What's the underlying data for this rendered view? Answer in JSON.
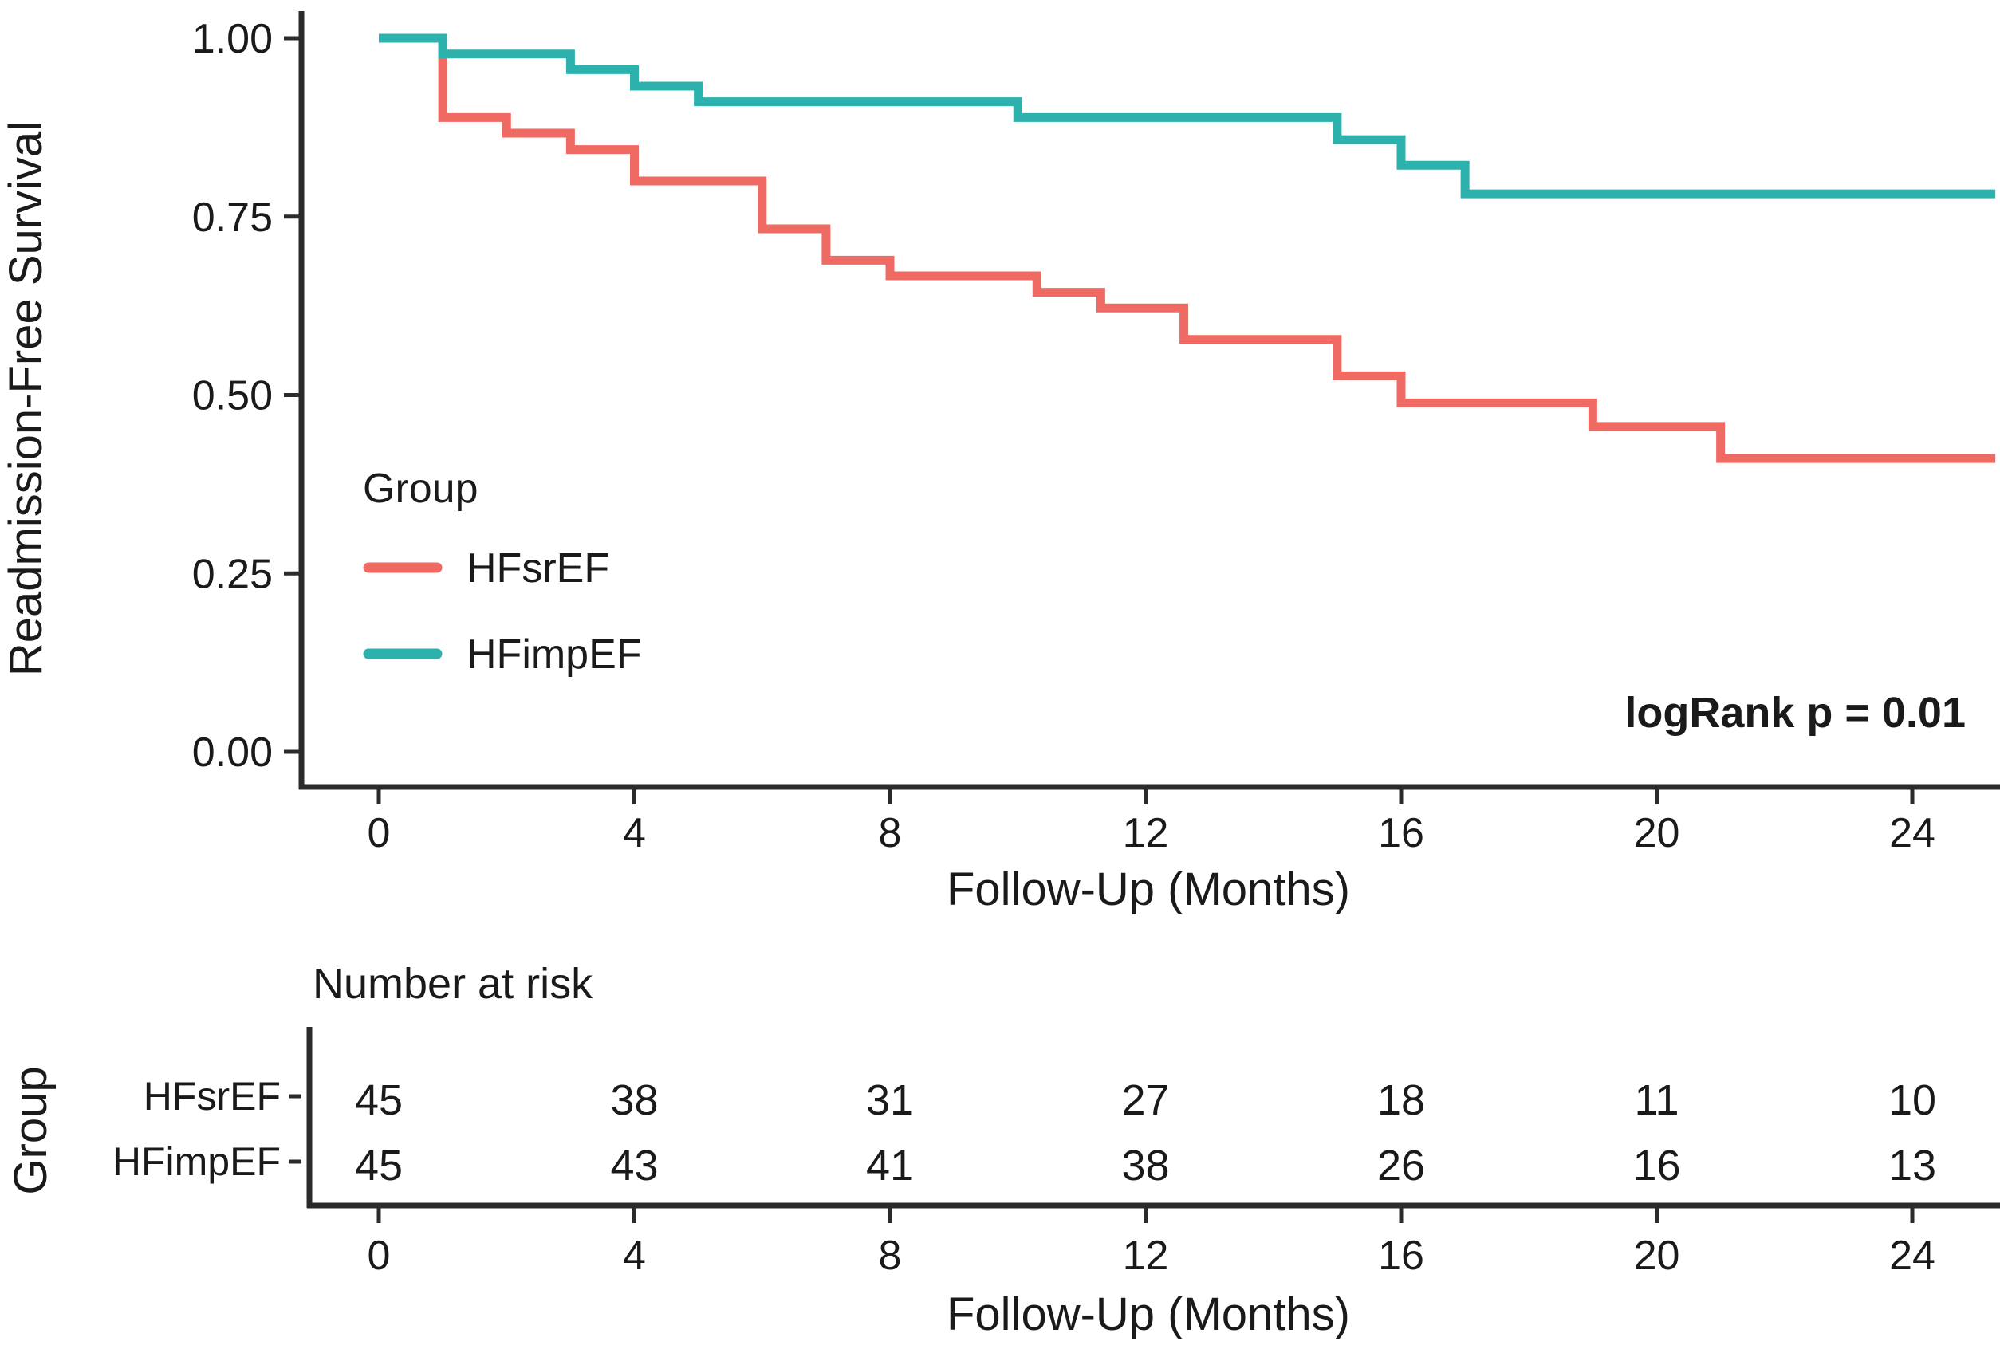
{
  "colors": {
    "hfsref": "#EF6A62",
    "hfimpef": "#2CB1AC",
    "hfsref_light": "#F2A59F",
    "hfimpef_light": "#8ED7D4",
    "axis_line": "#2b2b2b",
    "text": "#1a1a1a"
  },
  "chart_data": {
    "type": "line",
    "subtype": "kaplan-meier-step-curves",
    "title": "",
    "ylabel": "Readmission-Free Survival",
    "xlabel": "Follow-Up (Months)",
    "xlim": [
      0,
      25.3
    ],
    "ylim": [
      0.0,
      1.0
    ],
    "x_ticks": [
      0,
      4,
      8,
      12,
      16,
      20,
      24
    ],
    "y_ticks": [
      "0.00",
      "0.25",
      "0.50",
      "0.75",
      "1.00"
    ],
    "grid": false,
    "legend": {
      "title": "Group",
      "position": "inside-left",
      "entries": [
        {
          "label": "HFsrEF",
          "color": "#EF6A62"
        },
        {
          "label": "HFimpEF",
          "color": "#2CB1AC"
        }
      ]
    },
    "annotation": "logRank p = 0.01",
    "series": [
      {
        "name": "HFsrEF",
        "color": "#EF6A62",
        "end_x": 25.3,
        "steps": [
          [
            0,
            1.0
          ],
          [
            1,
            0.889
          ],
          [
            2,
            0.867
          ],
          [
            3,
            0.844
          ],
          [
            4,
            0.8
          ],
          [
            6,
            0.733
          ],
          [
            7,
            0.689
          ],
          [
            8,
            0.667
          ],
          [
            10.3,
            0.644
          ],
          [
            11.3,
            0.622
          ],
          [
            12.6,
            0.578
          ],
          [
            15,
            0.527
          ],
          [
            16,
            0.489
          ],
          [
            19,
            0.456
          ],
          [
            21,
            0.411
          ]
        ]
      },
      {
        "name": "HFimpEF",
        "color": "#2CB1AC",
        "end_x": 25.3,
        "steps": [
          [
            0,
            1.0
          ],
          [
            1,
            0.978
          ],
          [
            3,
            0.956
          ],
          [
            4,
            0.933
          ],
          [
            5,
            0.911
          ],
          [
            10,
            0.889
          ],
          [
            15,
            0.858
          ],
          [
            16,
            0.822
          ],
          [
            17,
            0.782
          ]
        ]
      }
    ],
    "risk_table": {
      "title": "Number at risk",
      "group_axis_label": "Group",
      "xlabel": "Follow-Up (Months)",
      "x_ticks": [
        0,
        4,
        8,
        12,
        16,
        20,
        24
      ],
      "rows": [
        {
          "label": "HFsrEF",
          "label_color": "#F2A59F",
          "values": [
            45,
            38,
            31,
            27,
            18,
            11,
            10
          ]
        },
        {
          "label": "HFimpEF",
          "label_color": "#8ED7D4",
          "values": [
            45,
            43,
            41,
            38,
            26,
            16,
            13
          ]
        }
      ]
    }
  }
}
